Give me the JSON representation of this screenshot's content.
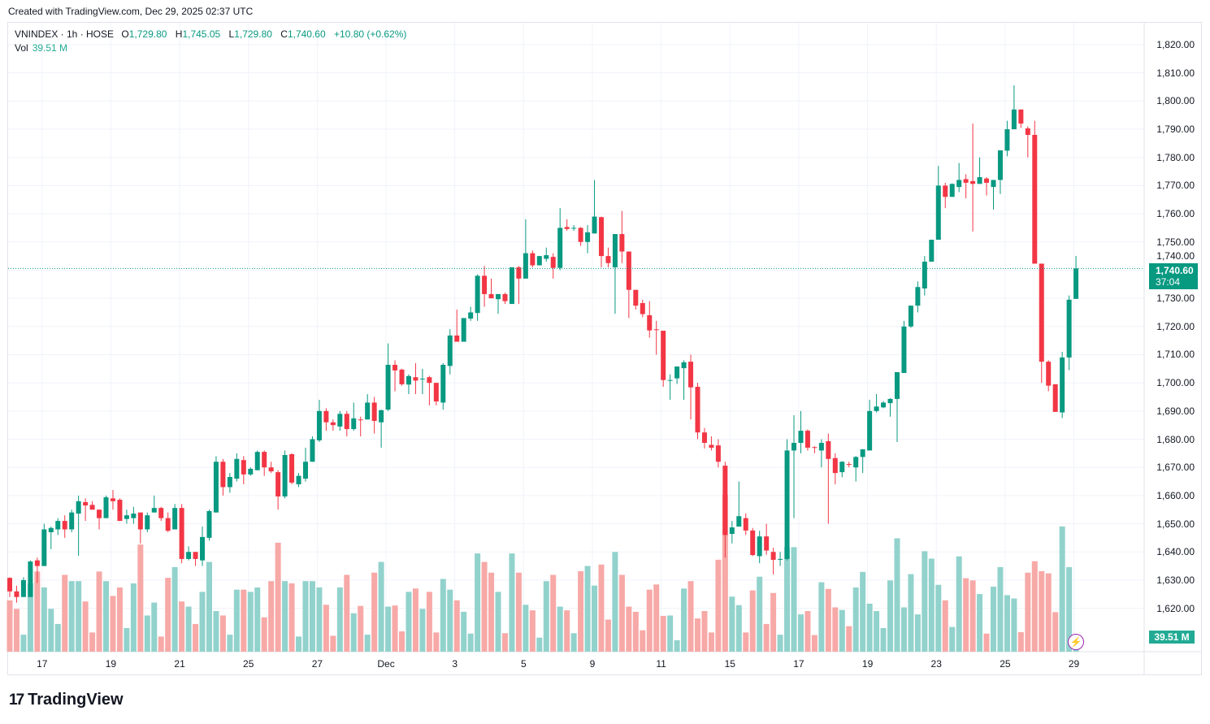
{
  "created_text": "Created with TradingView.com, Dec 29, 2025 02:37 UTC",
  "legend": {
    "symbol": "VNINDEX · 1h · HOSE",
    "o_label": "O",
    "o": "1,729.80",
    "h_label": "H",
    "h": "1,745.05",
    "l_label": "L",
    "l": "1,729.80",
    "c_label": "C",
    "c": "1,740.60",
    "change": "+10.80 (+0.62%)",
    "vol_label": "Vol",
    "vol": "39.51 M"
  },
  "current_price": {
    "price": "1,740.60",
    "countdown": "37:04"
  },
  "volume_badge": "39.51 M",
  "logo_text": "TradingView",
  "colors": {
    "up": "#089981",
    "down": "#f23645",
    "vol_up": "#92d2cc",
    "vol_down": "#f7a9a7",
    "grid": "#f0f3fa"
  },
  "chart_data": {
    "type": "candlestick",
    "title": "VNINDEX · 1h · HOSE",
    "ylim": [
      1610,
      1828
    ],
    "y_ticks": [
      "1,820.00",
      "1,810.00",
      "1,800.00",
      "1,790.00",
      "1,780.00",
      "1,770.00",
      "1,760.00",
      "1,750.00",
      "1,740.00",
      "1,730.00",
      "1,720.00",
      "1,710.00",
      "1,700.00",
      "1,690.00",
      "1,680.00",
      "1,670.00",
      "1,660.00",
      "1,650.00",
      "1,640.00",
      "1,630.00",
      "1,620.00"
    ],
    "y_tick_values": [
      1820,
      1810,
      1800,
      1790,
      1780,
      1770,
      1760,
      1750,
      1740,
      1730,
      1720,
      1710,
      1700,
      1690,
      1680,
      1670,
      1660,
      1650,
      1640,
      1630,
      1620
    ],
    "x_ticks": [
      {
        "label": "17",
        "bar": 4.7
      },
      {
        "label": "19",
        "bar": 14.7
      },
      {
        "label": "21",
        "bar": 24.7
      },
      {
        "label": "25",
        "bar": 34.7
      },
      {
        "label": "27",
        "bar": 44.7
      },
      {
        "label": "Dec",
        "bar": 54.7
      },
      {
        "label": "3",
        "bar": 64.7
      },
      {
        "label": "5",
        "bar": 74.7
      },
      {
        "label": "9",
        "bar": 84.7
      },
      {
        "label": "11",
        "bar": 94.7
      },
      {
        "label": "15",
        "bar": 104.7
      },
      {
        "label": "17",
        "bar": 114.7
      },
      {
        "label": "19",
        "bar": 124.7
      },
      {
        "label": "23",
        "bar": 134.7
      },
      {
        "label": "25",
        "bar": 144.7
      },
      {
        "label": "29",
        "bar": 154.7
      }
    ],
    "volume_unit": "M",
    "candles_ohlcv": [
      [
        1630.8,
        1631,
        1624,
        1626,
        139
      ],
      [
        1626,
        1628,
        1622,
        1624,
        116
      ],
      [
        1624,
        1631,
        1624,
        1630,
        46
      ],
      [
        1624,
        1637,
        1624,
        1636.6,
        185
      ],
      [
        1637,
        1638,
        1629,
        1635,
        217
      ],
      [
        1635,
        1650,
        1635,
        1648,
        174
      ],
      [
        1647,
        1649,
        1641,
        1648.5,
        116
      ],
      [
        1648,
        1652,
        1646,
        1651,
        75
      ],
      [
        1651,
        1653,
        1645,
        1648,
        208
      ],
      [
        1648,
        1655,
        1647,
        1654,
        191
      ],
      [
        1653.6,
        1660,
        1638.6,
        1658,
        191
      ],
      [
        1657.7,
        1659,
        1651,
        1656.5,
        136
      ],
      [
        1656.7,
        1658,
        1655,
        1655,
        52
      ],
      [
        1655,
        1655,
        1648,
        1652,
        217
      ],
      [
        1652,
        1660,
        1652,
        1659.4,
        191
      ],
      [
        1659,
        1662,
        1655,
        1658,
        151
      ],
      [
        1658.5,
        1659,
        1651,
        1651,
        174
      ],
      [
        1651.7,
        1655,
        1650,
        1653,
        64
      ],
      [
        1652,
        1656,
        1650,
        1653.6,
        185
      ],
      [
        1654,
        1654,
        1643,
        1648,
        290
      ],
      [
        1648,
        1654,
        1647,
        1653,
        98
      ],
      [
        1654,
        1660,
        1654,
        1655.6,
        133
      ],
      [
        1655.6,
        1656,
        1651,
        1652,
        41
      ],
      [
        1652,
        1654,
        1647,
        1647.5,
        200
      ],
      [
        1648,
        1657,
        1648,
        1655.6,
        229
      ],
      [
        1655.6,
        1657,
        1636,
        1637.5,
        136
      ],
      [
        1637.5,
        1642,
        1637,
        1640,
        122
      ],
      [
        1640,
        1640,
        1635,
        1637.5,
        75
      ],
      [
        1637,
        1649,
        1635,
        1645.3,
        162
      ],
      [
        1645,
        1655,
        1644,
        1654.5,
        243
      ],
      [
        1654,
        1674,
        1654,
        1672,
        110
      ],
      [
        1672,
        1673,
        1660,
        1663,
        98
      ],
      [
        1663,
        1668,
        1661,
        1666.6,
        46
      ],
      [
        1666,
        1675,
        1665,
        1673,
        168
      ],
      [
        1672.6,
        1674,
        1664,
        1667.5,
        168
      ],
      [
        1667.5,
        1670,
        1667,
        1669.5,
        162
      ],
      [
        1669,
        1676,
        1669,
        1675.5,
        174
      ],
      [
        1675.5,
        1676,
        1667,
        1670,
        93
      ],
      [
        1670,
        1672,
        1668,
        1668.6,
        191
      ],
      [
        1668.3,
        1669,
        1655,
        1659.7,
        295
      ],
      [
        1659.7,
        1676,
        1659,
        1674.4,
        191
      ],
      [
        1674.7,
        1675,
        1664,
        1664.6,
        185
      ],
      [
        1664,
        1668,
        1663,
        1667,
        41
      ],
      [
        1666,
        1677,
        1665,
        1672,
        191
      ],
      [
        1672,
        1681,
        1672,
        1680,
        191
      ],
      [
        1679.6,
        1694,
        1679,
        1690,
        174
      ],
      [
        1690,
        1691,
        1683,
        1686,
        127
      ],
      [
        1686,
        1687,
        1683,
        1685,
        43
      ],
      [
        1684.5,
        1690,
        1683,
        1689,
        174
      ],
      [
        1689,
        1690,
        1681,
        1683.6,
        208
      ],
      [
        1683.6,
        1693,
        1683,
        1687.4,
        104
      ],
      [
        1687,
        1688,
        1681,
        1686.8,
        124
      ],
      [
        1687,
        1696,
        1687,
        1693,
        46
      ],
      [
        1693,
        1695,
        1682,
        1686.5,
        214
      ],
      [
        1686,
        1690.5,
        1677,
        1690.3,
        243
      ],
      [
        1690.5,
        1714,
        1690,
        1706.4,
        122
      ],
      [
        1706.4,
        1708,
        1697,
        1704.4,
        125
      ],
      [
        1704.7,
        1705,
        1699,
        1699.5,
        55
      ],
      [
        1699.4,
        1703,
        1696,
        1702.4,
        162
      ],
      [
        1702,
        1707,
        1696,
        1700.8,
        171
      ],
      [
        1701.3,
        1705,
        1696,
        1701.5,
        116
      ],
      [
        1702,
        1702.5,
        1692,
        1700,
        162
      ],
      [
        1700,
        1700,
        1692,
        1693.4,
        52
      ],
      [
        1693,
        1707,
        1690.5,
        1706.4,
        197
      ],
      [
        1706,
        1719,
        1703,
        1716.8,
        168
      ],
      [
        1716.8,
        1726,
        1714.6,
        1714.6,
        139
      ],
      [
        1714.6,
        1723,
        1714.6,
        1723,
        108
      ],
      [
        1722.8,
        1727,
        1722,
        1725,
        49
      ],
      [
        1724.8,
        1738.5,
        1722,
        1738,
        266
      ],
      [
        1738,
        1741.5,
        1727,
        1731.5,
        243
      ],
      [
        1731.5,
        1737,
        1730,
        1730,
        214
      ],
      [
        1729.7,
        1731.5,
        1724.5,
        1731.5,
        162
      ],
      [
        1731.5,
        1732,
        1728,
        1729,
        50
      ],
      [
        1728,
        1741,
        1728,
        1741,
        266
      ],
      [
        1741,
        1741.5,
        1728,
        1737,
        214
      ],
      [
        1737,
        1758,
        1737,
        1746,
        127
      ],
      [
        1746,
        1747,
        1741,
        1741.7,
        112
      ],
      [
        1741.7,
        1745,
        1741.7,
        1745,
        38
      ],
      [
        1744,
        1748,
        1743,
        1745.3,
        191
      ],
      [
        1744.7,
        1746,
        1737,
        1740.8,
        208
      ],
      [
        1740.8,
        1762,
        1740,
        1755,
        122
      ],
      [
        1755.3,
        1758,
        1754,
        1754.6,
        112
      ],
      [
        1754.8,
        1756,
        1754,
        1755,
        50
      ],
      [
        1755,
        1755.3,
        1748.6,
        1750,
        218
      ],
      [
        1750,
        1756,
        1746,
        1753.4,
        232
      ],
      [
        1753,
        1772,
        1753,
        1759,
        179
      ],
      [
        1758.8,
        1759,
        1741,
        1745,
        236
      ],
      [
        1745,
        1748,
        1741,
        1742.5,
        87
      ],
      [
        1741,
        1752.8,
        1724.5,
        1752.8,
        270
      ],
      [
        1752.8,
        1761,
        1742.5,
        1746.6,
        208
      ],
      [
        1746.6,
        1746.6,
        1723,
        1733,
        122
      ],
      [
        1733,
        1733,
        1726,
        1727.4,
        108
      ],
      [
        1728.3,
        1729.5,
        1723.3,
        1724.4,
        58
      ],
      [
        1724,
        1729,
        1716,
        1718.6,
        168
      ],
      [
        1719,
        1722,
        1710,
        1718.8,
        182
      ],
      [
        1718.5,
        1718.5,
        1698.6,
        1701,
        97
      ],
      [
        1700.8,
        1703,
        1694,
        1701,
        98
      ],
      [
        1701.6,
        1705.8,
        1699.6,
        1705.8,
        31
      ],
      [
        1705.2,
        1708,
        1694,
        1707.3,
        171
      ],
      [
        1707.5,
        1710,
        1687,
        1698.4,
        191
      ],
      [
        1698.6,
        1700,
        1680,
        1682.4,
        90
      ],
      [
        1682.4,
        1684,
        1676.7,
        1678.7,
        110
      ],
      [
        1678,
        1681,
        1676,
        1677,
        52
      ],
      [
        1677.8,
        1680,
        1670,
        1672,
        249
      ],
      [
        1670.6,
        1672,
        1638,
        1646,
        426
      ],
      [
        1646.4,
        1651,
        1643,
        1648.7,
        149
      ],
      [
        1649,
        1665,
        1649,
        1652.7,
        126
      ],
      [
        1652,
        1653.7,
        1646,
        1647.6,
        52
      ],
      [
        1647.6,
        1648.5,
        1638.5,
        1638.9,
        166
      ],
      [
        1638.5,
        1647.5,
        1636,
        1645.5,
        203
      ],
      [
        1645.5,
        1650,
        1639,
        1640.5,
        75
      ],
      [
        1640,
        1641.5,
        1632,
        1637.2,
        159
      ],
      [
        1637.3,
        1640,
        1635,
        1637.5,
        46
      ],
      [
        1637.5,
        1680,
        1637,
        1676,
        283
      ],
      [
        1676,
        1688.5,
        1652,
        1678.7,
        283
      ],
      [
        1678.7,
        1690,
        1675,
        1683,
        101
      ],
      [
        1683,
        1683.5,
        1676,
        1677,
        110
      ],
      [
        1677.2,
        1677.5,
        1675,
        1677,
        45
      ],
      [
        1676,
        1680,
        1670,
        1678.7,
        188
      ],
      [
        1679.3,
        1682,
        1650,
        1673,
        170
      ],
      [
        1673.3,
        1675,
        1664,
        1668,
        120
      ],
      [
        1668.3,
        1672.2,
        1666.5,
        1672,
        113
      ],
      [
        1671.2,
        1672,
        1670,
        1671,
        69
      ],
      [
        1670,
        1674,
        1665,
        1673.7,
        174
      ],
      [
        1673.7,
        1676.5,
        1668,
        1676.4,
        216
      ],
      [
        1676,
        1694,
        1676,
        1690,
        130
      ],
      [
        1690,
        1696,
        1689.5,
        1691.6,
        110
      ],
      [
        1691.3,
        1693.5,
        1691,
        1693,
        64
      ],
      [
        1692.8,
        1694.6,
        1688,
        1694.3,
        193
      ],
      [
        1694.3,
        1698,
        1679,
        1703.8,
        307
      ],
      [
        1703.5,
        1722,
        1703.5,
        1720,
        120
      ],
      [
        1720,
        1727.4,
        1719.5,
        1727.4,
        210
      ],
      [
        1727.4,
        1736,
        1725,
        1734,
        101
      ],
      [
        1733.5,
        1745,
        1731,
        1743,
        272
      ],
      [
        1743,
        1750.8,
        1743,
        1750.8,
        252
      ],
      [
        1750.8,
        1777,
        1750.8,
        1770,
        181
      ],
      [
        1770,
        1771,
        1762,
        1766,
        139
      ],
      [
        1766,
        1770.8,
        1766,
        1770.6,
        67
      ],
      [
        1769.5,
        1778,
        1767.7,
        1772,
        258
      ],
      [
        1772.3,
        1774,
        1765.5,
        1771,
        199
      ],
      [
        1771.6,
        1792,
        1753.7,
        1770.6,
        193
      ],
      [
        1770.6,
        1780,
        1770.6,
        1773,
        156
      ],
      [
        1772.5,
        1773,
        1766.5,
        1771,
        49
      ],
      [
        1769.5,
        1772,
        1761.5,
        1772,
        176
      ],
      [
        1772,
        1782.5,
        1767,
        1782.5,
        229
      ],
      [
        1782.4,
        1793,
        1780.4,
        1790,
        153
      ],
      [
        1790,
        1805.6,
        1790,
        1797,
        144
      ],
      [
        1797,
        1797,
        1790.5,
        1792,
        53
      ],
      [
        1790.3,
        1791,
        1780,
        1788,
        214
      ],
      [
        1788,
        1793,
        1742.3,
        1742.3,
        245
      ],
      [
        1742.3,
        1742.3,
        1700,
        1707.5,
        218
      ],
      [
        1707.5,
        1708,
        1697,
        1699,
        212
      ],
      [
        1699.5,
        1699.5,
        1689.7,
        1689.7,
        107
      ],
      [
        1689.5,
        1711,
        1687.5,
        1709,
        339
      ],
      [
        1709,
        1731,
        1704.5,
        1729.5,
        229
      ],
      [
        1729.8,
        1745.05,
        1729.8,
        1740.6,
        39.51
      ]
    ]
  }
}
